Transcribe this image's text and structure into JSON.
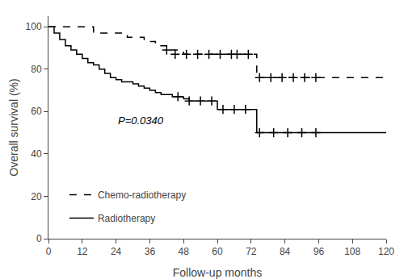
{
  "chart_data": {
    "type": "step",
    "xlabel": "Follow-up months",
    "ylabel": "Overall survival (%)",
    "xlim": [
      0,
      120
    ],
    "ylim": [
      0,
      105
    ],
    "xticks": [
      0,
      12,
      24,
      36,
      48,
      60,
      72,
      84,
      96,
      108,
      120
    ],
    "yticks": [
      0,
      20,
      40,
      60,
      80,
      100
    ],
    "grid": false,
    "legend": "lower left",
    "annotations": [
      {
        "text": "P=0.0340",
        "x": 24,
        "y": 52
      }
    ],
    "series": [
      {
        "name": "Chemo-radiotherapy",
        "color": "#000000",
        "line_style": "dashed",
        "marker": "plus",
        "x": [
          0,
          14,
          16,
          18,
          20,
          22,
          24,
          26,
          28,
          30,
          32,
          34,
          36,
          38,
          40,
          42,
          44,
          46,
          48,
          50,
          52,
          54,
          56,
          58,
          60,
          62,
          64,
          66,
          68,
          70,
          72,
          74,
          76,
          78,
          80,
          82,
          84,
          86,
          88,
          90,
          92,
          94,
          96,
          120
        ],
        "values": [
          100,
          100,
          97,
          97,
          97,
          97,
          97,
          97,
          95,
          95,
          95,
          93,
          93,
          91,
          91,
          89,
          89,
          89,
          87,
          87,
          87,
          87,
          87,
          87,
          87,
          87,
          87,
          87,
          87,
          87,
          87,
          76,
          76,
          76,
          76,
          76,
          76,
          76,
          76,
          76,
          76,
          76,
          76,
          76
        ],
        "censored_x": [
          42,
          45,
          49,
          53,
          57,
          61,
          65,
          67,
          71,
          75,
          79,
          83,
          87,
          91,
          95
        ],
        "censored_values": [
          89,
          87,
          87,
          87,
          87,
          87,
          87,
          87,
          87,
          76,
          76,
          76,
          76,
          76,
          76
        ]
      },
      {
        "name": "Radiotherapy",
        "color": "#000000",
        "line_style": "solid",
        "marker": "plus",
        "x": [
          0,
          2,
          4,
          6,
          8,
          10,
          12,
          14,
          16,
          18,
          20,
          22,
          24,
          26,
          28,
          30,
          32,
          34,
          36,
          38,
          40,
          42,
          44,
          46,
          48,
          50,
          52,
          54,
          56,
          58,
          60,
          62,
          64,
          66,
          68,
          70,
          72,
          74,
          76,
          78,
          80,
          82,
          84,
          86,
          88,
          90,
          92,
          94,
          96,
          120
        ],
        "values": [
          100,
          97,
          94,
          91,
          89,
          87,
          85,
          83,
          82,
          80,
          78,
          76,
          75,
          74,
          74,
          73,
          72,
          71,
          70,
          69,
          68,
          68,
          67,
          67,
          66,
          65,
          65,
          65,
          65,
          65,
          61,
          61,
          61,
          61,
          61,
          61,
          61,
          50,
          50,
          50,
          50,
          50,
          50,
          50,
          50,
          50,
          50,
          50,
          50,
          50
        ],
        "censored_x": [
          46,
          50,
          54,
          58,
          62,
          66,
          70,
          75,
          80,
          85,
          90,
          95
        ],
        "censored_values": [
          67,
          65,
          65,
          65,
          61,
          61,
          61,
          50,
          50,
          50,
          50,
          50
        ]
      }
    ]
  }
}
